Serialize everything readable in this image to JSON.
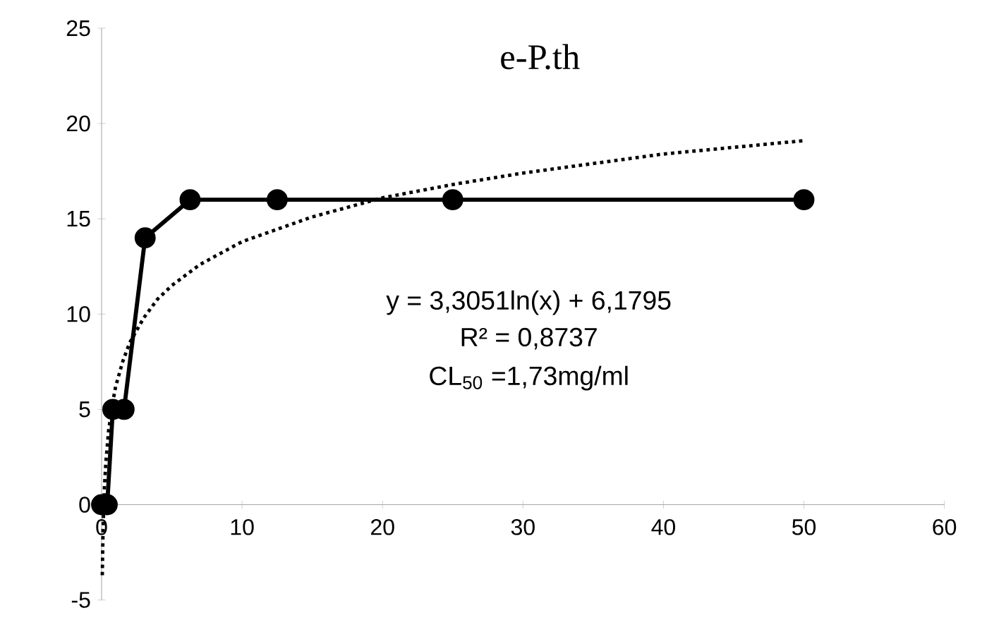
{
  "chart_data": {
    "type": "line",
    "title": "e-P.th",
    "xlim": [
      0,
      60
    ],
    "ylim": [
      -5,
      25
    ],
    "xticks": [
      0,
      10,
      20,
      30,
      40,
      50,
      60
    ],
    "yticks": [
      -5,
      0,
      5,
      10,
      15,
      20,
      25
    ],
    "series": [
      {
        "color": "#000000",
        "marker": "circle",
        "line_style": "solid",
        "x": [
          0,
          0.4,
          0.8,
          1.6,
          3.1,
          6.3,
          12.5,
          25,
          50
        ],
        "values": [
          0,
          0,
          5,
          5,
          14,
          16,
          16,
          16,
          16
        ]
      },
      {
        "color": "#000000",
        "marker": "none",
        "line_style": "dotted",
        "x": [
          0.05,
          0.1,
          0.2,
          0.3,
          0.5,
          0.75,
          1,
          1.5,
          2,
          3,
          4,
          5,
          7,
          10,
          15,
          20,
          25,
          30,
          40,
          50
        ],
        "values": [
          -3.7,
          -1.4,
          0.9,
          2.2,
          3.9,
          5.2,
          6.2,
          7.5,
          8.5,
          9.8,
          10.8,
          11.5,
          12.6,
          13.8,
          15.1,
          16.1,
          16.8,
          17.4,
          18.4,
          19.1
        ]
      }
    ],
    "annotations": [
      "y = 3,3051ln(x) + 6,1795",
      "R² = 0,8737",
      "CL$_{50}$ =1,73mg/ml"
    ]
  }
}
